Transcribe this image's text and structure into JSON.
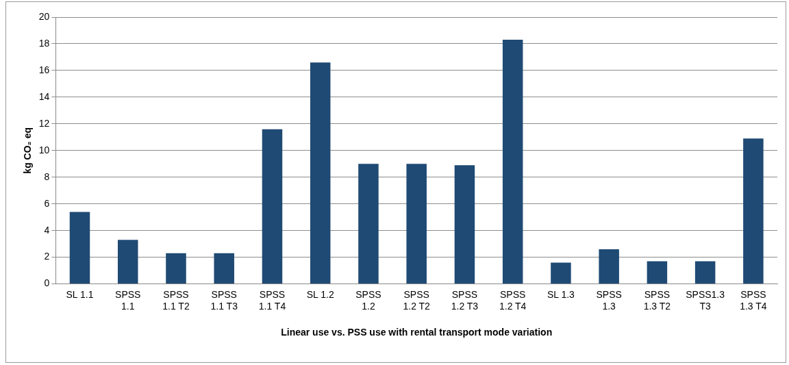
{
  "chart_data": {
    "type": "bar",
    "xlabel": "Linear use vs. PSS use with rental transport mode variation",
    "ylabel": "kg CO₂ eq",
    "categories": [
      "SL 1.1",
      "SPSS 1.1",
      "SPSS 1.1 T2",
      "SPSS 1.1 T3",
      "SPSS 1.1 T4",
      "SL 1.2",
      "SPSS 1.2",
      "SPSS 1.2 T2",
      "SPSS 1.2 T3",
      "SPSS 1.2 T4",
      "SL 1.3",
      "SPSS 1.3",
      "SPSS 1.3 T2",
      "SPSS1.3 T3",
      "SPSS 1.3 T4"
    ],
    "values": [
      5.4,
      3.3,
      2.3,
      2.3,
      11.6,
      16.6,
      9.0,
      9.0,
      8.9,
      18.3,
      1.6,
      2.6,
      1.7,
      1.7,
      10.9
    ],
    "color": "#1f4a74",
    "ylim": [
      0,
      20
    ],
    "yticks": [
      0,
      2,
      4,
      6,
      8,
      10,
      12,
      14,
      16,
      18,
      20
    ],
    "grid": "y",
    "legend": false
  }
}
